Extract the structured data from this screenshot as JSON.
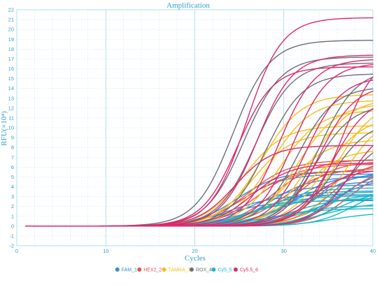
{
  "chart_data": {
    "type": "line",
    "title": "Amplification",
    "xlabel": "Cycles",
    "ylabel": "RFU(×10⁴)",
    "xlim": [
      0,
      40
    ],
    "ylim": [
      -2,
      22
    ],
    "x_ticks": [
      0,
      10,
      20,
      30,
      40
    ],
    "y_ticks": [
      -2,
      -1,
      0,
      1,
      2,
      3,
      4,
      5,
      6,
      7,
      8,
      9,
      10,
      11,
      12,
      13,
      14,
      15,
      16,
      17,
      18,
      19,
      20,
      21,
      22
    ],
    "x_start": 1,
    "grid": true,
    "legend_position": "bottom",
    "series": [
      {
        "name": "FAM_1",
        "color": "#2f8fd8",
        "curves": [
          {
            "plateau": 5.6,
            "ct": 24.8,
            "k": 0.42
          },
          {
            "plateau": 5.3,
            "ct": 25.2,
            "k": 0.42
          },
          {
            "plateau": 5.0,
            "ct": 28.5,
            "k": 0.45
          },
          {
            "plateau": 5.2,
            "ct": 31.0,
            "k": 0.45
          },
          {
            "plateau": 5.5,
            "ct": 33.5,
            "k": 0.45
          },
          {
            "plateau": 4.6,
            "ct": 30.5,
            "k": 0.4
          },
          {
            "plateau": 4.2,
            "ct": 26.5,
            "k": 0.38
          },
          {
            "plateau": 3.6,
            "ct": 27.5,
            "k": 0.38
          },
          {
            "plateau": 5.7,
            "ct": 36.0,
            "k": 0.45
          },
          {
            "plateau": 3.2,
            "ct": 24.0,
            "k": 0.38
          },
          {
            "plateau": 2.6,
            "ct": 23.5,
            "k": 0.36
          },
          {
            "plateau": 4.9,
            "ct": 35.0,
            "k": 0.42
          }
        ]
      },
      {
        "name": "HEX2_2",
        "color": "#e8514f",
        "curves": [
          {
            "plateau": 6.7,
            "ct": 26.0,
            "k": 0.42
          },
          {
            "plateau": 6.3,
            "ct": 27.2,
            "k": 0.42
          },
          {
            "plateau": 6.6,
            "ct": 31.5,
            "k": 0.45
          },
          {
            "plateau": 6.4,
            "ct": 34.0,
            "k": 0.45
          },
          {
            "plateau": 6.9,
            "ct": 35.5,
            "k": 0.45
          },
          {
            "plateau": 5.9,
            "ct": 30.0,
            "k": 0.42
          },
          {
            "plateau": 6.1,
            "ct": 36.5,
            "k": 0.45
          },
          {
            "plateau": 5.6,
            "ct": 25.5,
            "k": 0.4
          },
          {
            "plateau": 6.8,
            "ct": 29.0,
            "k": 0.42
          },
          {
            "plateau": 6.2,
            "ct": 37.5,
            "k": 0.45
          }
        ]
      },
      {
        "name": "TAMRA_3",
        "color": "#f7bd1a",
        "curves": [
          {
            "plateau": 13.4,
            "ct": 27.5,
            "k": 0.45
          },
          {
            "plateau": 12.8,
            "ct": 28.5,
            "k": 0.45
          },
          {
            "plateau": 11.8,
            "ct": 29.5,
            "k": 0.45
          },
          {
            "plateau": 12.5,
            "ct": 31.5,
            "k": 0.45
          },
          {
            "plateau": 13.0,
            "ct": 33.0,
            "k": 0.45
          },
          {
            "plateau": 10.2,
            "ct": 25.5,
            "k": 0.45
          },
          {
            "plateau": 9.5,
            "ct": 26.5,
            "k": 0.45
          },
          {
            "plateau": 11.2,
            "ct": 34.5,
            "k": 0.45
          },
          {
            "plateau": 8.8,
            "ct": 30.5,
            "k": 0.45
          },
          {
            "plateau": 12.9,
            "ct": 36.0,
            "k": 0.45
          },
          {
            "plateau": 11.6,
            "ct": 37.0,
            "k": 0.45
          },
          {
            "plateau": 7.8,
            "ct": 32.0,
            "k": 0.45
          }
        ]
      },
      {
        "name": "ROX_4",
        "color": "#6b6f7a",
        "curves": [
          {
            "plateau": 18.9,
            "ct": 24.3,
            "k": 0.48
          },
          {
            "plateau": 17.2,
            "ct": 25.5,
            "k": 0.48
          },
          {
            "plateau": 16.6,
            "ct": 26.8,
            "k": 0.48
          },
          {
            "plateau": 15.5,
            "ct": 28.0,
            "k": 0.48
          },
          {
            "plateau": 14.2,
            "ct": 31.5,
            "k": 0.48
          },
          {
            "plateau": 12.4,
            "ct": 33.5,
            "k": 0.48
          },
          {
            "plateau": 10.8,
            "ct": 35.5,
            "k": 0.48
          },
          {
            "plateau": 9.2,
            "ct": 37.0,
            "k": 0.48
          },
          {
            "plateau": 16.0,
            "ct": 34.0,
            "k": 0.48
          }
        ]
      },
      {
        "name": "Cy5_5",
        "color": "#1cb8c4",
        "curves": [
          {
            "plateau": 3.9,
            "ct": 28.0,
            "k": 0.4
          },
          {
            "plateau": 3.5,
            "ct": 29.5,
            "k": 0.4
          },
          {
            "plateau": 3.1,
            "ct": 27.0,
            "k": 0.38
          },
          {
            "plateau": 2.9,
            "ct": 31.0,
            "k": 0.4
          },
          {
            "plateau": 3.3,
            "ct": 33.0,
            "k": 0.4
          },
          {
            "plateau": 2.4,
            "ct": 34.5,
            "k": 0.4
          },
          {
            "plateau": 2.7,
            "ct": 26.0,
            "k": 0.36
          },
          {
            "plateau": 2.1,
            "ct": 30.0,
            "k": 0.38
          },
          {
            "plateau": 3.7,
            "ct": 36.0,
            "k": 0.42
          },
          {
            "plateau": 1.8,
            "ct": 28.5,
            "k": 0.36
          },
          {
            "plateau": 1.4,
            "ct": 35.5,
            "k": 0.4
          },
          {
            "plateau": 4.2,
            "ct": 38.0,
            "k": 0.45
          }
        ]
      },
      {
        "name": "Cy5.5_6",
        "color": "#e0266f",
        "curves": [
          {
            "plateau": 21.2,
            "ct": 25.8,
            "k": 0.5
          },
          {
            "plateau": 17.4,
            "ct": 27.0,
            "k": 0.5
          },
          {
            "plateau": 17.0,
            "ct": 29.5,
            "k": 0.5
          },
          {
            "plateau": 16.6,
            "ct": 31.0,
            "k": 0.5
          },
          {
            "plateau": 16.2,
            "ct": 24.8,
            "k": 0.5
          },
          {
            "plateau": 15.2,
            "ct": 32.5,
            "k": 0.5
          },
          {
            "plateau": 14.4,
            "ct": 34.0,
            "k": 0.5
          },
          {
            "plateau": 13.2,
            "ct": 35.5,
            "k": 0.5
          },
          {
            "plateau": 8.2,
            "ct": 24.5,
            "k": 0.48
          },
          {
            "plateau": 6.4,
            "ct": 26.5,
            "k": 0.46
          },
          {
            "plateau": 17.8,
            "ct": 36.5,
            "k": 0.5
          },
          {
            "plateau": 10.5,
            "ct": 37.5,
            "k": 0.5
          },
          {
            "plateau": 5.8,
            "ct": 33.0,
            "k": 0.46
          }
        ]
      }
    ]
  }
}
